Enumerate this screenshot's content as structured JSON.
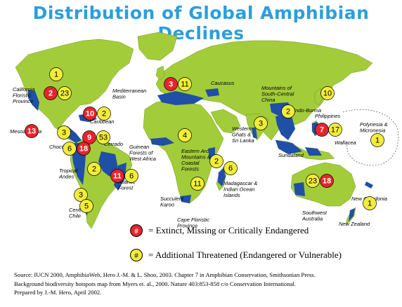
{
  "title": "Distribution of Global Amphibian Declines",
  "colors": {
    "ocean": "#ffffff",
    "land": "#a3cc3a",
    "hotspot": "#1f4fa6",
    "extinct_badge": "#e8242b",
    "threatened_badge": "#f2ec3a",
    "title": "#2a9fdc"
  },
  "regions": [
    {
      "name": "California Floristic Province",
      "extinct": 2,
      "threatened": 23
    },
    {
      "name": "Mediterranean Basin",
      "extinct": 3,
      "threatened": 11
    },
    {
      "name": "Caucasus",
      "extinct": null,
      "threatened": null
    },
    {
      "name": "Mountains of South-Central China",
      "extinct": null,
      "threatened": 2
    },
    {
      "name": "Caribbean",
      "extinct": 10,
      "threatened": 2
    },
    {
      "name": "Mesoamerica",
      "extinct": 13,
      "threatened": 3
    },
    {
      "name": "Chocó",
      "extinct": 9,
      "threatened": 53
    },
    {
      "name": "Tropical Andes",
      "extinct": 18,
      "threatened": 6
    },
    {
      "name": "Cerrado",
      "extinct": null,
      "threatened": 2
    },
    {
      "name": "Atlantic Forest",
      "extinct": 11,
      "threatened": 6
    },
    {
      "name": "Central Chile",
      "extinct": null,
      "threatened": 3
    },
    {
      "name": "Guinean Forests of West Africa",
      "extinct": null,
      "threatened": 4
    },
    {
      "name": "Eastern Arc Mountains & Coastal Forests",
      "extinct": null,
      "threatened": 2
    },
    {
      "name": "Succulent Karoo",
      "extinct": null,
      "threatened": null
    },
    {
      "name": "Cape Floristic Province",
      "extinct": null,
      "threatened": 11
    },
    {
      "name": "Madagascar & Indian Ocean Islands",
      "extinct": null,
      "threatened": 6
    },
    {
      "name": "Western Ghats & Sri Lanka",
      "extinct": null,
      "threatened": 3
    },
    {
      "name": "Indo-Burma",
      "extinct": null,
      "threatened": null
    },
    {
      "name": "Philippines",
      "extinct": 7,
      "threatened": 17
    },
    {
      "name": "Sundaland",
      "extinct": null,
      "threatened": null
    },
    {
      "name": "Wallacea",
      "extinct": null,
      "threatened": null
    },
    {
      "name": "Polynesia & Micronesia",
      "extinct": null,
      "threatened": 1
    },
    {
      "name": "Southwest Australia",
      "extinct": 18,
      "threatened": 23
    },
    {
      "name": "New Caledonia",
      "extinct": null,
      "threatened": null
    },
    {
      "name": "New Zealand",
      "extinct": null,
      "threatened": 1
    }
  ],
  "map_labels": [
    {
      "id": "california",
      "lines": [
        "California",
        "Floristic",
        "Province"
      ]
    },
    {
      "id": "mediterranean",
      "lines": [
        "Mediterranean",
        "Basin"
      ]
    },
    {
      "id": "caucasus",
      "lines": [
        "Caucasus"
      ]
    },
    {
      "id": "china",
      "lines": [
        "Mountains of",
        "South-Central",
        "China"
      ]
    },
    {
      "id": "caribbean",
      "lines": [
        "Caribbean"
      ]
    },
    {
      "id": "mesoamerica",
      "lines": [
        "Mesoamerica"
      ]
    },
    {
      "id": "choco",
      "lines": [
        "Chocó"
      ]
    },
    {
      "id": "andes",
      "lines": [
        "Tropical",
        "Andes"
      ]
    },
    {
      "id": "cerrado",
      "lines": [
        "Cerrado"
      ]
    },
    {
      "id": "atlantic",
      "lines": [
        "Atlantic",
        "Forest"
      ]
    },
    {
      "id": "chile",
      "lines": [
        "Central",
        "Chile"
      ]
    },
    {
      "id": "guinean",
      "lines": [
        "Guinean",
        "Forests of",
        "West Africa"
      ]
    },
    {
      "id": "eastern_arc",
      "lines": [
        "Eastern Arc",
        "Mountains &",
        "Coastal",
        "Forests"
      ]
    },
    {
      "id": "karoo",
      "lines": [
        "Succulent",
        "Karoo"
      ]
    },
    {
      "id": "cape",
      "lines": [
        "Cape Floristic",
        "Province"
      ]
    },
    {
      "id": "madagascar",
      "lines": [
        "Madagascar &",
        "Indian Ocean",
        "Islands"
      ]
    },
    {
      "id": "ghats",
      "lines": [
        "Western",
        "Ghats &",
        "Sri Lanka"
      ]
    },
    {
      "id": "indoburma",
      "lines": [
        "Indo-Burma"
      ]
    },
    {
      "id": "philippines",
      "lines": [
        "Philippines"
      ]
    },
    {
      "id": "sundaland",
      "lines": [
        "Sundaland"
      ]
    },
    {
      "id": "wallacea",
      "lines": [
        "Wallacea"
      ]
    },
    {
      "id": "polynesia",
      "lines": [
        "Polynesia &",
        "Micronesia"
      ]
    },
    {
      "id": "sw_australia",
      "lines": [
        "Southwest",
        "Australia"
      ]
    },
    {
      "id": "new_caledonia",
      "lines": [
        "New Caledonia"
      ]
    },
    {
      "id": "new_zealand",
      "lines": [
        "New Zealand"
      ]
    }
  ],
  "badges": [
    {
      "id": "b_namerica",
      "kind": "threatened",
      "value": "1"
    },
    {
      "id": "b_calif_red",
      "kind": "extinct",
      "value": "2"
    },
    {
      "id": "b_calif_yel",
      "kind": "threatened",
      "value": "23"
    },
    {
      "id": "b_med_red",
      "kind": "extinct",
      "value": "3"
    },
    {
      "id": "b_med_yel",
      "kind": "threatened",
      "value": "11"
    },
    {
      "id": "b_siberia",
      "kind": "threatened",
      "value": "10"
    },
    {
      "id": "b_carib_red",
      "kind": "extinct",
      "value": "10"
    },
    {
      "id": "b_carib_yel",
      "kind": "threatened",
      "value": "2"
    },
    {
      "id": "b_china_yel",
      "kind": "threatened",
      "value": "2"
    },
    {
      "id": "b_meso_red",
      "kind": "extinct",
      "value": "13"
    },
    {
      "id": "b_meso_yel",
      "kind": "threatened",
      "value": "3"
    },
    {
      "id": "b_choco_red",
      "kind": "extinct",
      "value": "9"
    },
    {
      "id": "b_choco_yel",
      "kind": "threatened",
      "value": "53"
    },
    {
      "id": "b_andes_yel",
      "kind": "threatened",
      "value": "6"
    },
    {
      "id": "b_andes_red",
      "kind": "extinct",
      "value": "18"
    },
    {
      "id": "b_ghats",
      "kind": "threatened",
      "value": "3"
    },
    {
      "id": "b_phil_red",
      "kind": "extinct",
      "value": "7"
    },
    {
      "id": "b_phil_yel",
      "kind": "threatened",
      "value": "17"
    },
    {
      "id": "b_polynesia",
      "kind": "threatened",
      "value": "1"
    },
    {
      "id": "b_guinea",
      "kind": "threatened",
      "value": "4"
    },
    {
      "id": "b_cerrado",
      "kind": "threatened",
      "value": "2"
    },
    {
      "id": "b_atl_red",
      "kind": "extinct",
      "value": "11"
    },
    {
      "id": "b_atl_yel",
      "kind": "threatened",
      "value": "6"
    },
    {
      "id": "b_eastarc",
      "kind": "threatened",
      "value": "2"
    },
    {
      "id": "b_madagascar",
      "kind": "threatened",
      "value": "6"
    },
    {
      "id": "b_cape",
      "kind": "threatened",
      "value": "11"
    },
    {
      "id": "b_chile1",
      "kind": "threatened",
      "value": "3"
    },
    {
      "id": "b_chile2",
      "kind": "threatened",
      "value": "5"
    },
    {
      "id": "b_swaus_yel",
      "kind": "threatened",
      "value": "23"
    },
    {
      "id": "b_swaus_red",
      "kind": "extinct",
      "value": "18"
    },
    {
      "id": "b_nz",
      "kind": "threatened",
      "value": "1"
    }
  ],
  "legend": {
    "symbol": "#",
    "extinct_label": "= Extinct, Missing or Critically Endangered",
    "threatened_label": "= Additional Threatened (Endangered or Vulnerable)"
  },
  "source": {
    "line1": "Source: IUCN 2000, AmphibiaWeb, Hero J.-M. & L. Shoo, 2003. Chapter 7 in Amphibian Conservation, Smithsonian Press.",
    "line2": "Background biodiversity hotspots map from Myers et. al., 2000. Nature 403:853-858 c/o Conservation International.",
    "line3": "Prepared by J.-M. Hero, April 2002."
  }
}
